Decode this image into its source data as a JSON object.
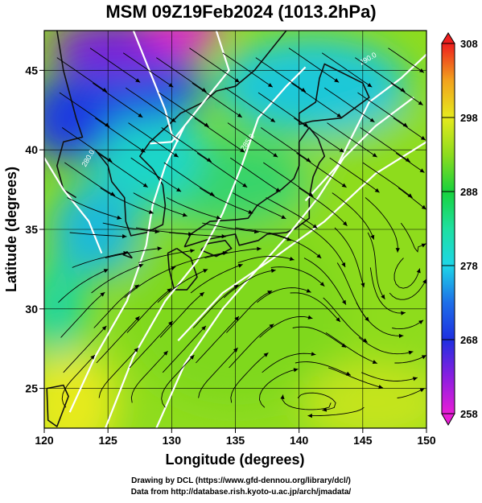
{
  "title": "MSM 09Z19Feb2024 (1013.2hPa)",
  "xlabel": "Longitude (degrees)",
  "ylabel": "Latitude  (degrees)",
  "credit_line1": "Drawing by DCL (https://www.gfd-dennou.org/library/dcl/)",
  "credit_line2": "Data from http://database.rish.kyoto-u.ac.jp/arch/jmadata/",
  "chart_data": {
    "type": "heatmap",
    "title": "MSM 09Z19Feb2024 (1013.2hPa)",
    "xlabel": "Longitude (degrees)",
    "ylabel": "Latitude  (degrees)",
    "xlim": [
      120,
      150
    ],
    "ylim": [
      22.5,
      47.5
    ],
    "x_ticks": [
      120,
      125,
      130,
      135,
      140,
      145,
      150
    ],
    "y_ticks": [
      25,
      30,
      35,
      40,
      45
    ],
    "colorbar": {
      "range": [
        258,
        308
      ],
      "ticks": [
        258,
        268,
        278,
        288,
        298,
        308
      ],
      "extend": "both"
    },
    "contour_labels": [
      "280.0",
      "285.0",
      "290.0"
    ],
    "overlay": "streamlines",
    "grid": true
  },
  "colors": {
    "land": "#111111",
    "contour": "#ffffff",
    "streamline": "#000000"
  }
}
